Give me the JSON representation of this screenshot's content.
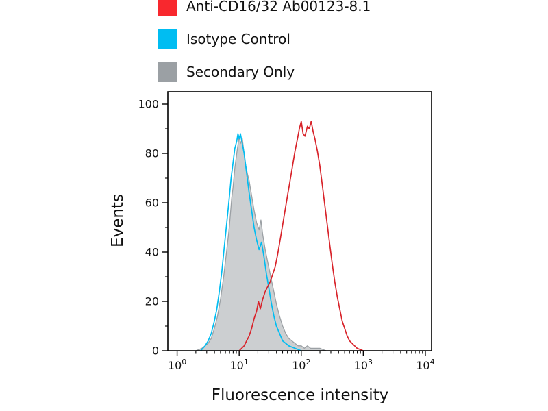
{
  "background": "#ffffff",
  "legend": {
    "items": [
      {
        "label": "Anti-CD16/32 Ab00123-8.1",
        "color": "#f8282e"
      },
      {
        "label": "Isotype Control",
        "color": "#00bdf2"
      },
      {
        "label": "Secondary Only",
        "color": "#9ba0a4"
      }
    ]
  },
  "chart_data": {
    "type": "line",
    "title": "",
    "xlabel": "Fluorescence intensity",
    "ylabel": "Events",
    "x_scale": "log10",
    "xlim_log10": [
      -0.15,
      4.1
    ],
    "ylim": [
      0,
      105
    ],
    "grid": false,
    "legend_position": "top-left-above-plot",
    "yticks": [
      0,
      20,
      40,
      60,
      80,
      100
    ],
    "yticks_minor": [
      10,
      30,
      50,
      70,
      90
    ],
    "xticks": [
      {
        "log10": 0,
        "base": "10",
        "exp": "0"
      },
      {
        "log10": 1,
        "base": "10",
        "exp": "1"
      },
      {
        "log10": 2,
        "base": "10",
        "exp": "2"
      },
      {
        "log10": 3,
        "base": "10",
        "exp": "3"
      },
      {
        "log10": 4,
        "base": "10",
        "exp": "4"
      }
    ],
    "axis_color": "#000000",
    "series": [
      {
        "name": "Secondary Only",
        "style": "filled",
        "color": "#9ba0a4",
        "fill": "#c6cacc",
        "points": [
          [
            0.3,
            0
          ],
          [
            0.4,
            1
          ],
          [
            0.5,
            3
          ],
          [
            0.55,
            5
          ],
          [
            0.6,
            9
          ],
          [
            0.65,
            14
          ],
          [
            0.7,
            21
          ],
          [
            0.75,
            30
          ],
          [
            0.8,
            41
          ],
          [
            0.84,
            50
          ],
          [
            0.88,
            62
          ],
          [
            0.9,
            66
          ],
          [
            0.93,
            74
          ],
          [
            0.96,
            80
          ],
          [
            1.0,
            87
          ],
          [
            1.02,
            84
          ],
          [
            1.05,
            86
          ],
          [
            1.08,
            80
          ],
          [
            1.1,
            76
          ],
          [
            1.13,
            72
          ],
          [
            1.16,
            69
          ],
          [
            1.2,
            63
          ],
          [
            1.24,
            57
          ],
          [
            1.28,
            52
          ],
          [
            1.32,
            49
          ],
          [
            1.35,
            53
          ],
          [
            1.38,
            47
          ],
          [
            1.42,
            41
          ],
          [
            1.46,
            36
          ],
          [
            1.5,
            31
          ],
          [
            1.55,
            25
          ],
          [
            1.6,
            19
          ],
          [
            1.65,
            14
          ],
          [
            1.7,
            10
          ],
          [
            1.75,
            7
          ],
          [
            1.8,
            5
          ],
          [
            1.85,
            4
          ],
          [
            1.9,
            3
          ],
          [
            1.95,
            2
          ],
          [
            2.0,
            2
          ],
          [
            2.05,
            1
          ],
          [
            2.1,
            2
          ],
          [
            2.15,
            1
          ],
          [
            2.2,
            1
          ],
          [
            2.3,
            1
          ],
          [
            2.4,
            0
          ]
        ]
      },
      {
        "name": "Isotype Control",
        "style": "line",
        "color": "#00bdf2",
        "points": [
          [
            0.38,
            0
          ],
          [
            0.45,
            2
          ],
          [
            0.5,
            4
          ],
          [
            0.55,
            7
          ],
          [
            0.6,
            12
          ],
          [
            0.64,
            17
          ],
          [
            0.68,
            24
          ],
          [
            0.72,
            32
          ],
          [
            0.76,
            42
          ],
          [
            0.8,
            52
          ],
          [
            0.84,
            62
          ],
          [
            0.87,
            70
          ],
          [
            0.9,
            76
          ],
          [
            0.93,
            82
          ],
          [
            0.96,
            85
          ],
          [
            0.98,
            88
          ],
          [
            1.0,
            86
          ],
          [
            1.02,
            88
          ],
          [
            1.05,
            84
          ],
          [
            1.08,
            80
          ],
          [
            1.1,
            76
          ],
          [
            1.13,
            70
          ],
          [
            1.16,
            64
          ],
          [
            1.2,
            57
          ],
          [
            1.24,
            50
          ],
          [
            1.28,
            45
          ],
          [
            1.32,
            41
          ],
          [
            1.36,
            44
          ],
          [
            1.4,
            38
          ],
          [
            1.44,
            31
          ],
          [
            1.48,
            25
          ],
          [
            1.52,
            19
          ],
          [
            1.56,
            14
          ],
          [
            1.6,
            10
          ],
          [
            1.65,
            7
          ],
          [
            1.7,
            4
          ],
          [
            1.75,
            3
          ],
          [
            1.8,
            2
          ],
          [
            1.9,
            1
          ],
          [
            2.0,
            0
          ]
        ]
      },
      {
        "name": "Anti-CD16/32 Ab00123-8.1",
        "style": "line",
        "color": "#d8232a",
        "points": [
          [
            1.0,
            0
          ],
          [
            1.08,
            2
          ],
          [
            1.12,
            4
          ],
          [
            1.16,
            6
          ],
          [
            1.2,
            9
          ],
          [
            1.24,
            13
          ],
          [
            1.28,
            16
          ],
          [
            1.31,
            20
          ],
          [
            1.34,
            17
          ],
          [
            1.38,
            21
          ],
          [
            1.42,
            24
          ],
          [
            1.46,
            26
          ],
          [
            1.5,
            28
          ],
          [
            1.54,
            31
          ],
          [
            1.58,
            34
          ],
          [
            1.62,
            39
          ],
          [
            1.66,
            45
          ],
          [
            1.7,
            51
          ],
          [
            1.74,
            57
          ],
          [
            1.78,
            63
          ],
          [
            1.82,
            69
          ],
          [
            1.86,
            75
          ],
          [
            1.9,
            81
          ],
          [
            1.94,
            86
          ],
          [
            1.97,
            90
          ],
          [
            2.0,
            93
          ],
          [
            2.03,
            88
          ],
          [
            2.06,
            87
          ],
          [
            2.1,
            91
          ],
          [
            2.13,
            90
          ],
          [
            2.16,
            93
          ],
          [
            2.19,
            89
          ],
          [
            2.22,
            86
          ],
          [
            2.26,
            81
          ],
          [
            2.3,
            75
          ],
          [
            2.34,
            67
          ],
          [
            2.38,
            59
          ],
          [
            2.42,
            51
          ],
          [
            2.46,
            43
          ],
          [
            2.5,
            35
          ],
          [
            2.54,
            28
          ],
          [
            2.58,
            22
          ],
          [
            2.62,
            17
          ],
          [
            2.66,
            12
          ],
          [
            2.7,
            9
          ],
          [
            2.74,
            6
          ],
          [
            2.78,
            4
          ],
          [
            2.82,
            3
          ],
          [
            2.86,
            2
          ],
          [
            2.9,
            1
          ],
          [
            3.0,
            0
          ]
        ]
      }
    ]
  }
}
